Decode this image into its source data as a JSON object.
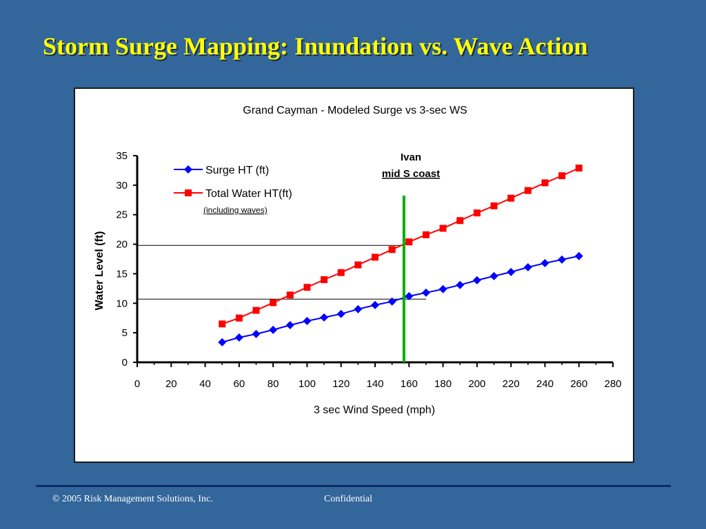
{
  "slide": {
    "title": "Storm Surge Mapping: Inundation vs. Wave Action",
    "footer_left": "© 2005 Risk Management Solutions, Inc.",
    "footer_center": "Confidential"
  },
  "chart_data": {
    "type": "line",
    "title": "Grand Cayman - Modeled Surge vs 3-sec WS",
    "xlabel": "3 sec Wind Speed (mph)",
    "ylabel": "Water Level (ft)",
    "xlim": [
      0,
      280
    ],
    "ylim": [
      0,
      35
    ],
    "x_ticks": [
      0,
      20,
      40,
      60,
      80,
      100,
      120,
      140,
      160,
      180,
      200,
      220,
      240,
      260,
      280
    ],
    "y_ticks": [
      0,
      5,
      10,
      15,
      20,
      25,
      30,
      35
    ],
    "grid": false,
    "legend_position": "top-left",
    "x": [
      50,
      60,
      70,
      80,
      90,
      100,
      110,
      120,
      130,
      140,
      150,
      160,
      170,
      180,
      190,
      200,
      210,
      220,
      230,
      240,
      250,
      260
    ],
    "series": [
      {
        "name": "Surge HT (ft)",
        "color": "#0000ff",
        "marker": "diamond",
        "values": [
          3.4,
          4.2,
          4.8,
          5.5,
          6.3,
          7.0,
          7.6,
          8.2,
          9.0,
          9.7,
          10.3,
          11.2,
          11.8,
          12.4,
          13.1,
          13.9,
          14.6,
          15.3,
          16.1,
          16.8,
          17.4,
          18.0
        ]
      },
      {
        "name": "Total Water HT(ft)",
        "color": "#ff0000",
        "marker": "square",
        "values": [
          6.5,
          7.5,
          8.8,
          10.1,
          11.4,
          12.7,
          14.0,
          15.2,
          16.5,
          17.8,
          19.1,
          20.4,
          21.6,
          22.7,
          24.0,
          25.3,
          26.5,
          27.8,
          29.1,
          30.4,
          31.6,
          32.9
        ]
      }
    ],
    "legend_note": "(including waves)",
    "annotation": {
      "line1": "Ivan",
      "line2": "mid S coast",
      "x": 157,
      "color": "#00b000"
    },
    "reference_lines": [
      {
        "y": 19.8,
        "x_end": 157
      },
      {
        "y": 10.7,
        "x_end": 170
      }
    ]
  }
}
